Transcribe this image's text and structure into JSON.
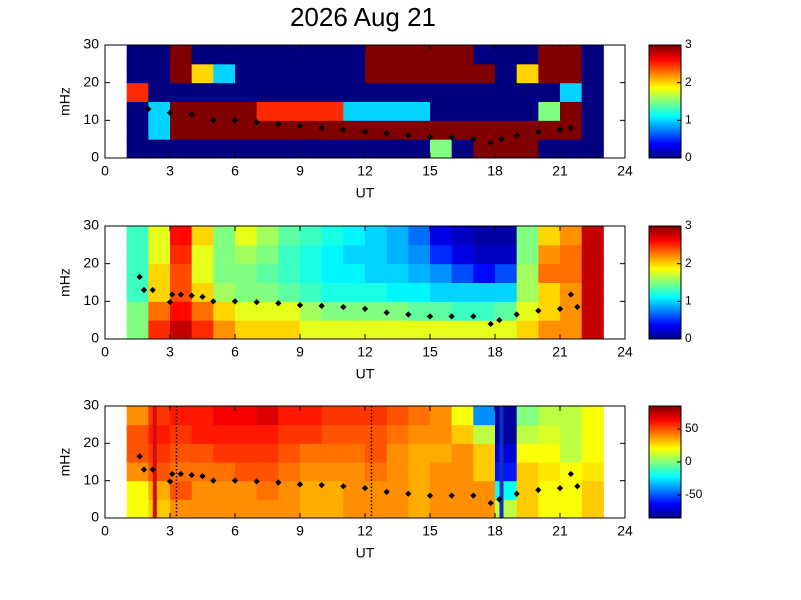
{
  "chart_data": [
    {
      "type": "heatmap",
      "title": "2026 Aug 21",
      "xlabel": "UT",
      "ylabel": "mHz",
      "colormap": "jet",
      "xlim": [
        0,
        24
      ],
      "xticks": [
        0,
        3,
        6,
        9,
        12,
        15,
        18,
        21,
        24
      ],
      "ylim": [
        0,
        30
      ],
      "yticks": [
        0,
        10,
        20,
        30
      ],
      "clim": [
        0,
        3
      ],
      "cticks": [
        0,
        1,
        2,
        3
      ],
      "x_edges": [
        1,
        2,
        3,
        4,
        5,
        6,
        7,
        8,
        9,
        10,
        11,
        12,
        13,
        14,
        15,
        16,
        17,
        18,
        19,
        20,
        21,
        22,
        23
      ],
      "y_edges": [
        0,
        5,
        10,
        15,
        20,
        25,
        30
      ],
      "z": [
        [
          0,
          0,
          0,
          0,
          0,
          0,
          0,
          0,
          0,
          0,
          0,
          0,
          0,
          0,
          1.5,
          0,
          3,
          3,
          3,
          0,
          0,
          0
        ],
        [
          0,
          1,
          3,
          3,
          3,
          3,
          3,
          3,
          3,
          3,
          3,
          3,
          3,
          3,
          3,
          3,
          3,
          3,
          3,
          3,
          3,
          0
        ],
        [
          0,
          1,
          3,
          3,
          3,
          3,
          2.5,
          2.5,
          2.5,
          2.5,
          1,
          1,
          1,
          1,
          0,
          0,
          0,
          0,
          0,
          1.5,
          3,
          0
        ],
        [
          2.5,
          0,
          0,
          0,
          0,
          0,
          0,
          0,
          0,
          0,
          0,
          0,
          0,
          0,
          0,
          0,
          0,
          0,
          0,
          0,
          1,
          0
        ],
        [
          0,
          0,
          3,
          2,
          1,
          0,
          0,
          0,
          0,
          0,
          0,
          3,
          3,
          3,
          3,
          3,
          3,
          0,
          2,
          3,
          3,
          0
        ],
        [
          0,
          0,
          3,
          0,
          0,
          0,
          0,
          0,
          0,
          0,
          0,
          3,
          3,
          3,
          3,
          3,
          0,
          0,
          0,
          3,
          3,
          0
        ]
      ],
      "trace": {
        "color": "#000000",
        "x": [
          2,
          3,
          4,
          5,
          6,
          7,
          8,
          9,
          10,
          11,
          12,
          13,
          14,
          15,
          16,
          17,
          17.8,
          18.3,
          19,
          20,
          21,
          21.5
        ],
        "y": [
          13,
          12,
          11.5,
          10,
          10,
          9.5,
          9,
          8.5,
          8,
          7.5,
          7,
          6.5,
          6,
          5.5,
          5.5,
          5,
          4,
          5,
          6,
          7,
          7.5,
          8
        ]
      }
    },
    {
      "type": "heatmap",
      "xlabel": "UT",
      "ylabel": "mHz",
      "colormap": "jet",
      "xlim": [
        0,
        24
      ],
      "xticks": [
        0,
        3,
        6,
        9,
        12,
        15,
        18,
        21,
        24
      ],
      "ylim": [
        0,
        30
      ],
      "yticks": [
        0,
        10,
        20,
        30
      ],
      "clim": [
        0,
        3
      ],
      "cticks": [
        0,
        1,
        2,
        3
      ],
      "x_edges": [
        1,
        2,
        3,
        4,
        5,
        6,
        7,
        8,
        9,
        10,
        11,
        12,
        13,
        14,
        15,
        16,
        17,
        18,
        19,
        20,
        21,
        22,
        23
      ],
      "y_edges": [
        0,
        5,
        10,
        15,
        20,
        25,
        30
      ],
      "z": [
        [
          1.5,
          2.5,
          2.8,
          2.5,
          2.2,
          2,
          2,
          2,
          1.8,
          1.8,
          1.8,
          1.8,
          1.8,
          1.8,
          1.8,
          1.8,
          1.8,
          1.8,
          2,
          2.2,
          2.2,
          2.8
        ],
        [
          1.5,
          2.3,
          2.6,
          2.3,
          2,
          1.8,
          1.8,
          1.8,
          1.6,
          1.5,
          1.5,
          1.5,
          1.5,
          1.4,
          1.4,
          1.3,
          1.3,
          1.4,
          1.8,
          2,
          2.2,
          2.8
        ],
        [
          1.3,
          2,
          2.4,
          2,
          1.6,
          1.5,
          1.5,
          1.4,
          1.3,
          1.2,
          1.2,
          1.2,
          1.1,
          1.1,
          1,
          1,
          1,
          1,
          1.6,
          2,
          2.2,
          2.8
        ],
        [
          1.3,
          2,
          2.4,
          1.8,
          1.5,
          1.5,
          1.4,
          1.3,
          1.2,
          1.1,
          1.1,
          1,
          1,
          0.9,
          0.8,
          0.6,
          0.4,
          0.6,
          1.6,
          2.3,
          2.3,
          2.8
        ],
        [
          1.3,
          1.8,
          2.5,
          1.8,
          1.5,
          1.6,
          1.5,
          1.3,
          1.2,
          1.1,
          1,
          1,
          0.9,
          0.8,
          0.5,
          0.3,
          0.2,
          0.2,
          1.5,
          2.2,
          2.3,
          2.8
        ],
        [
          1.3,
          1.8,
          2.6,
          2,
          1.5,
          1.8,
          1.6,
          1.4,
          1.3,
          1.2,
          1.1,
          1,
          0.9,
          0.7,
          0.3,
          0.2,
          0.1,
          0.1,
          1.5,
          2,
          2.2,
          2.8
        ]
      ],
      "trace": {
        "color": "#000000",
        "x": [
          1.6,
          1.8,
          2.2,
          3,
          3.1,
          3.5,
          4,
          4.5,
          5,
          6,
          7,
          8,
          9,
          10,
          11,
          12,
          13,
          14,
          15,
          16,
          17,
          17.8,
          18.2,
          19,
          20,
          21,
          21.5,
          21.8
        ],
        "y": [
          16.5,
          13,
          13,
          9.8,
          11.8,
          11.8,
          11.5,
          11.2,
          10,
          10,
          9.8,
          9.5,
          9,
          8.8,
          8.5,
          8,
          7,
          6.5,
          6,
          6,
          6,
          4,
          5,
          6.5,
          7.5,
          8,
          11.8,
          8.5
        ]
      }
    },
    {
      "type": "heatmap",
      "xlabel": "UT",
      "ylabel": "mHz",
      "colormap": "jet",
      "xlim": [
        0,
        24
      ],
      "xticks": [
        0,
        3,
        6,
        9,
        12,
        15,
        18,
        21,
        24
      ],
      "ylim": [
        0,
        30
      ],
      "yticks": [
        0,
        10,
        20,
        30
      ],
      "clim": [
        -85,
        85
      ],
      "cticks": [
        -50,
        0,
        50
      ],
      "x_edges": [
        1,
        2,
        3,
        4,
        5,
        6,
        7,
        8,
        9,
        10,
        11,
        12,
        13,
        14,
        15,
        16,
        17,
        18,
        19,
        20,
        21,
        22,
        23
      ],
      "y_edges": [
        0,
        5,
        10,
        15,
        20,
        25,
        30
      ],
      "z": [
        [
          20,
          30,
          40,
          40,
          40,
          40,
          40,
          40,
          35,
          35,
          40,
          40,
          40,
          35,
          40,
          40,
          40,
          10,
          30,
          20,
          20,
          30
        ],
        [
          20,
          35,
          50,
          40,
          40,
          40,
          45,
          40,
          35,
          35,
          40,
          40,
          40,
          35,
          40,
          40,
          40,
          -20,
          30,
          20,
          20,
          30
        ],
        [
          40,
          50,
          45,
          45,
          45,
          50,
          50,
          45,
          40,
          40,
          40,
          45,
          40,
          35,
          40,
          40,
          30,
          -60,
          30,
          25,
          20,
          25
        ],
        [
          50,
          55,
          50,
          50,
          55,
          55,
          55,
          50,
          45,
          45,
          45,
          50,
          40,
          35,
          35,
          40,
          30,
          -70,
          20,
          20,
          10,
          20
        ],
        [
          50,
          60,
          55,
          60,
          60,
          60,
          60,
          55,
          55,
          50,
          50,
          50,
          45,
          40,
          40,
          30,
          10,
          -80,
          10,
          15,
          10,
          20
        ],
        [
          40,
          55,
          60,
          60,
          65,
          65,
          70,
          60,
          60,
          55,
          55,
          55,
          50,
          45,
          40,
          20,
          -40,
          -80,
          0,
          10,
          10,
          20
        ]
      ],
      "markers": [
        {
          "x": 2.3,
          "color": "#d01010",
          "style": "solid"
        },
        {
          "x": 3.3,
          "color": "#000000",
          "style": "dotted"
        },
        {
          "x": 12.3,
          "color": "#000000",
          "style": "dotted"
        },
        {
          "x": 18.3,
          "color": "#1030c0",
          "style": "solid"
        }
      ],
      "trace": {
        "color": "#000000",
        "x": [
          1.6,
          1.8,
          2.2,
          3,
          3.1,
          3.5,
          4,
          4.5,
          5,
          6,
          7,
          8,
          9,
          10,
          11,
          12,
          13,
          14,
          15,
          16,
          17,
          17.8,
          18.2,
          19,
          20,
          21,
          21.5,
          21.8
        ],
        "y": [
          16.5,
          13,
          13,
          9.8,
          11.8,
          11.8,
          11.5,
          11.2,
          10,
          10,
          9.8,
          9.5,
          9,
          8.8,
          8.5,
          8,
          7,
          6.5,
          6,
          6,
          6,
          4,
          5,
          6.5,
          7.5,
          8,
          11.8,
          8.5
        ]
      }
    }
  ]
}
